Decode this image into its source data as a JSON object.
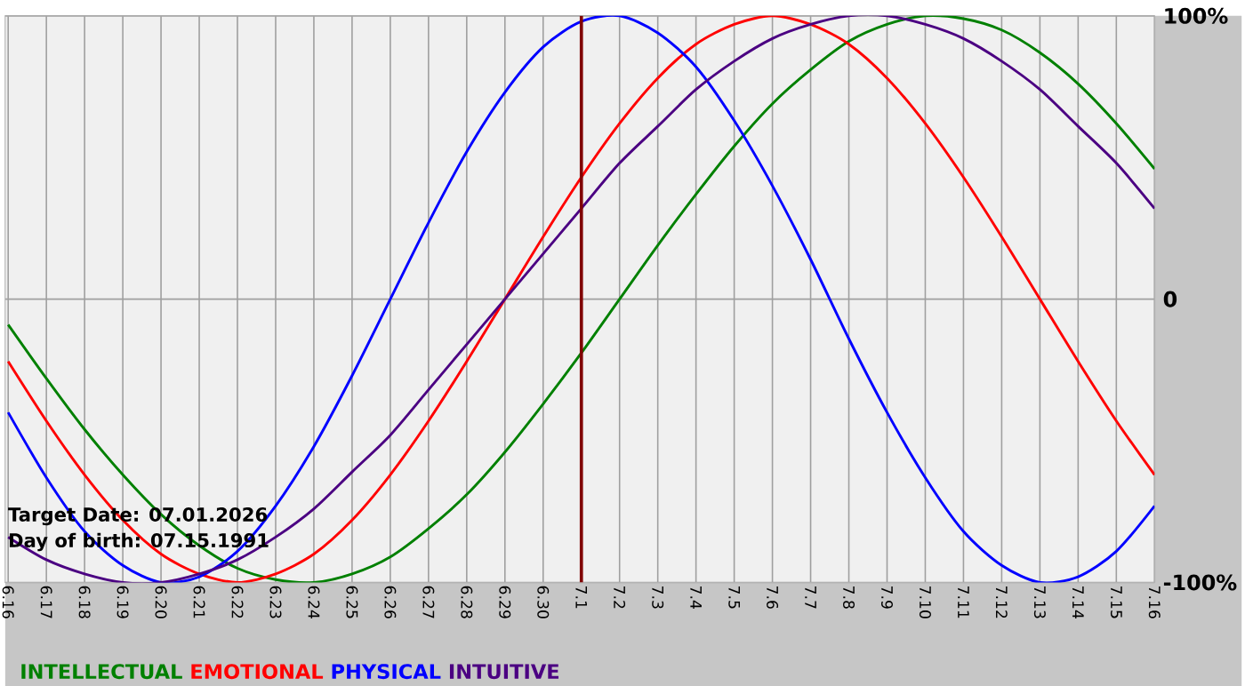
{
  "chart_data": {
    "type": "line",
    "categories": [
      "6.16",
      "6.17",
      "6.18",
      "6.19",
      "6.20",
      "6.21",
      "6.22",
      "6.23",
      "6.24",
      "6.25",
      "6.26",
      "6.27",
      "6.28",
      "6.29",
      "6.30",
      "7.1",
      "7.2",
      "7.3",
      "7.4",
      "7.5",
      "7.6",
      "7.7",
      "7.8",
      "7.9",
      "7.10",
      "7.11",
      "7.12",
      "7.13",
      "7.14",
      "7.15",
      "7.16"
    ],
    "series": [
      {
        "name": "INTELLECTUAL",
        "color": "#008000",
        "values": [
          -9,
          -28,
          -46,
          -62,
          -76,
          -87,
          -95,
          -99,
          -100,
          -97,
          -91,
          -81,
          -69,
          -54,
          -37,
          -19,
          0,
          19,
          37,
          54,
          69,
          81,
          91,
          97,
          100,
          99,
          95,
          87,
          76,
          62,
          46
        ]
      },
      {
        "name": "EMOTIONAL",
        "color": "#ff0000",
        "values": [
          -22,
          -43,
          -62,
          -78,
          -90,
          -97,
          -100,
          -97,
          -90,
          -78,
          -62,
          -43,
          -22,
          0,
          22,
          43,
          62,
          78,
          90,
          97,
          100,
          97,
          90,
          78,
          62,
          43,
          22,
          0,
          -22,
          -43,
          -62
        ]
      },
      {
        "name": "PHYSICAL",
        "color": "#0000ff",
        "values": [
          -40,
          -63,
          -82,
          -94,
          -100,
          -98,
          -89,
          -73,
          -52,
          -27,
          0,
          27,
          52,
          73,
          89,
          98,
          100,
          94,
          82,
          63,
          40,
          14,
          -14,
          -40,
          -63,
          -82,
          -94,
          -100,
          -98,
          -89,
          -73
        ]
      },
      {
        "name": "INTUITIVE",
        "color": "#4b0082",
        "values": [
          -84,
          -92,
          -97,
          -100,
          -100,
          -97,
          -92,
          -84,
          -74,
          -61,
          -48,
          -32,
          -16,
          0,
          16,
          32,
          48,
          61,
          74,
          84,
          92,
          97,
          100,
          100,
          97,
          92,
          84,
          74,
          61,
          48,
          32
        ]
      }
    ],
    "ylim": [
      -100,
      100
    ],
    "yticks": [
      {
        "value": 100,
        "label": "100%"
      },
      0,
      {
        "value": -100,
        "label": "-100%"
      }
    ],
    "grid": true,
    "legend": "bottom",
    "marker": "none",
    "line_style": "solid",
    "ref_lines": [
      {
        "axis": "x",
        "value": "7.1",
        "color": "#800000"
      }
    ],
    "annotations": [
      "Target Date: 07.01.2026",
      "Day of birth: 07.15.1991"
    ]
  }
}
